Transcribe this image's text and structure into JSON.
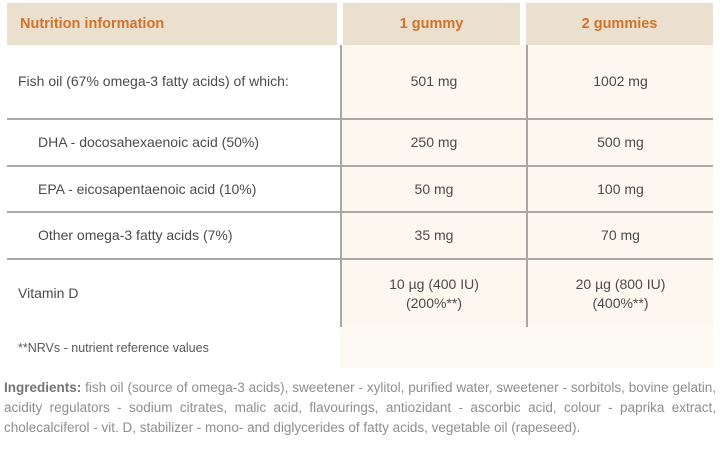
{
  "colors": {
    "header_bg": "#ebdfcd",
    "header_text": "#d0732d",
    "value_cell_bg": "#fcf8f0",
    "rule_gray": "#a9a7a3",
    "body_text": "#4b4b4b",
    "muted_text": "#8e8e8e"
  },
  "table": {
    "header": [
      "Nutrition information",
      "1 gummy",
      "2 gummies"
    ],
    "rows": [
      {
        "label": "Fish oil (67% omega-3 fatty acids) of which:",
        "values": [
          "501 mg",
          "1002 mg"
        ]
      },
      {
        "label": "DHA - docosahexaenoic acid (50%)",
        "values": [
          "250 mg",
          "500 mg"
        ]
      },
      {
        "label": "EPA - eicosapentaenoic acid (10%)",
        "values": [
          "50 mg",
          "100 mg"
        ]
      },
      {
        "label": "Other omega-3 fatty acids (7%)",
        "values": [
          "35 mg",
          "70 mg"
        ]
      },
      {
        "label": "Vitamin D",
        "values_lines": [
          [
            "10 µg (400 IU)",
            "(200%**)"
          ],
          [
            "20 µg (800 IU)",
            "(400%**)"
          ]
        ]
      }
    ],
    "footnote": "**NRVs - nutrient reference values"
  },
  "ingredients": {
    "label": "Ingredients:",
    "text": " fish oil (source of omega-3 acids), sweetener - xylitol, purified water, sweetener - sorbitols, bovine gelatin, acidity regulators - sodium citrates, malic acid, flavourings, antiozidant - ascorbic acid, colour - paprika extract, cholecalciferol - vit. D, stabilizer - mono- and diglycerides of fatty acids, vegetable oil (rapeseed)."
  }
}
